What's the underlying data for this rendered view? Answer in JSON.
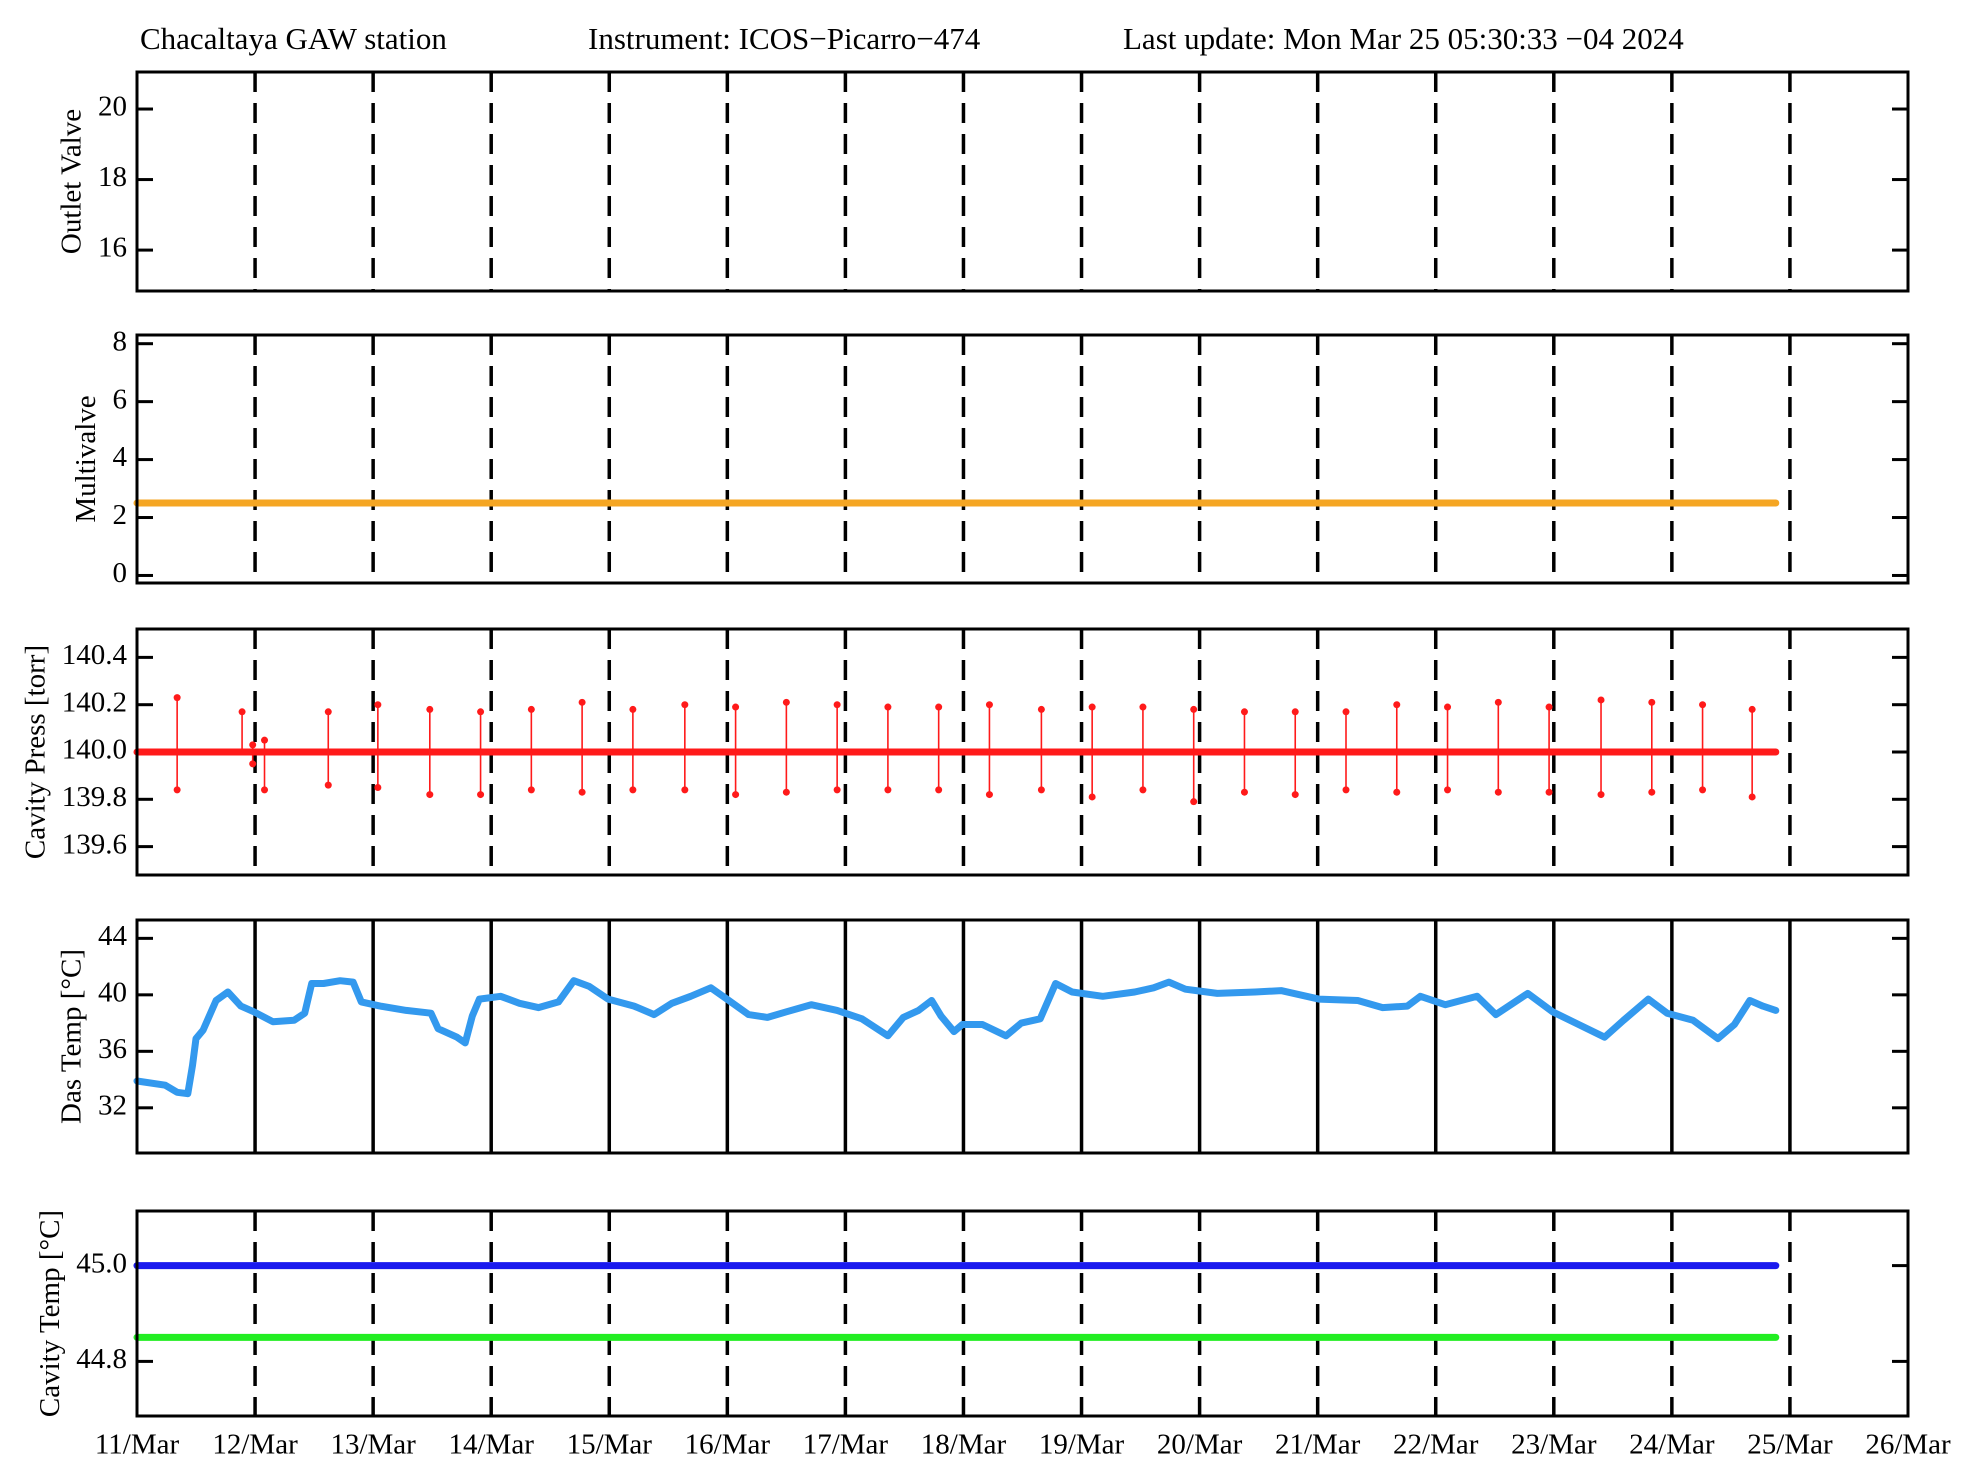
{
  "header": {
    "station": "Chacaltaya GAW station",
    "instrument": "Instrument: ICOS−Picarro−474",
    "update": "Last update: Mon Mar 25 05:30:33 −04 2024"
  },
  "chart_data": [
    {
      "type": "line",
      "ylabel": "Outlet Valve",
      "ylim": [
        14.84,
        21.05
      ],
      "yticks": [
        16,
        18,
        20
      ],
      "xlim": [
        0,
        15
      ],
      "xticks": [
        0,
        1,
        2,
        3,
        4,
        5,
        6,
        7,
        8,
        9,
        10,
        11,
        12,
        13,
        14,
        15
      ],
      "grid": "dashed",
      "series": []
    },
    {
      "type": "line",
      "ylabel": "Multivalve",
      "ylim": [
        -0.26,
        8.3
      ],
      "yticks": [
        0,
        2,
        4,
        6,
        8
      ],
      "xlim": [
        0,
        15
      ],
      "xticks": [
        0,
        1,
        2,
        3,
        4,
        5,
        6,
        7,
        8,
        9,
        10,
        11,
        12,
        13,
        14,
        15
      ],
      "grid": "dashed",
      "series": [
        {
          "color": "#f5a623",
          "x": [
            0,
            13.88
          ],
          "values": [
            2.5,
            2.5
          ]
        }
      ]
    },
    {
      "type": "line",
      "ylabel": "Cavity Press [torr]",
      "ylim": [
        139.48,
        140.52
      ],
      "yticks": [
        139.6,
        139.8,
        {
          "value": 140,
          "label": "140.0"
        },
        140.2,
        140.4
      ],
      "xlim": [
        0,
        15
      ],
      "xticks": [
        0,
        1,
        2,
        3,
        4,
        5,
        6,
        7,
        8,
        9,
        10,
        11,
        12,
        13,
        14,
        15
      ],
      "grid": "dashed",
      "series": [
        {
          "color": "#ff1a1a",
          "x": [
            0,
            13.88
          ],
          "values": [
            140,
            140
          ]
        }
      ],
      "spikes": {
        "color": "#ff1a1a",
        "x": [
          0.34,
          0.89,
          0.98,
          1.08,
          1.62,
          2.04,
          2.48,
          2.91,
          3.34,
          3.77,
          4.2,
          4.64,
          5.07,
          5.5,
          5.93,
          6.36,
          6.79,
          7.22,
          7.66,
          8.09,
          8.52,
          8.95,
          9.38,
          9.81,
          10.24,
          10.67,
          11.1,
          11.53,
          11.96,
          12.4,
          12.83,
          13.26,
          13.68
        ],
        "high": [
          140.23,
          140.17,
          140.03,
          140.05,
          140.17,
          140.2,
          140.18,
          140.17,
          140.18,
          140.21,
          140.18,
          140.2,
          140.19,
          140.21,
          140.2,
          140.19,
          140.19,
          140.2,
          140.18,
          140.19,
          140.19,
          140.18,
          140.17,
          140.17,
          140.17,
          140.2,
          140.19,
          140.21,
          140.19,
          140.22,
          140.21,
          140.2,
          140.18
        ],
        "low": [
          139.84,
          140,
          139.95,
          139.84,
          139.86,
          139.85,
          139.82,
          139.82,
          139.84,
          139.83,
          139.84,
          139.84,
          139.82,
          139.83,
          139.84,
          139.84,
          139.84,
          139.82,
          139.84,
          139.81,
          139.84,
          139.79,
          139.83,
          139.82,
          139.84,
          139.83,
          139.84,
          139.83,
          139.83,
          139.82,
          139.83,
          139.84,
          139.81
        ]
      }
    },
    {
      "type": "line",
      "ylabel": "Das Temp [°C]",
      "ylim": [
        28.8,
        45.3
      ],
      "yticks": [
        32,
        36,
        40,
        44
      ],
      "xlim": [
        0,
        15
      ],
      "xticks": [
        0,
        1,
        2,
        3,
        4,
        5,
        6,
        7,
        8,
        9,
        10,
        11,
        12,
        13,
        14,
        15
      ],
      "grid": "solid",
      "series": [
        {
          "color": "#3399ee",
          "x": [
            0,
            0.24,
            0.34,
            0.43,
            0.47,
            0.5,
            0.56,
            0.67,
            0.77,
            0.88,
            0.99,
            1.15,
            1.33,
            1.42,
            1.48,
            1.58,
            1.72,
            1.83,
            1.9,
            2.06,
            2.28,
            2.49,
            2.55,
            2.71,
            2.78,
            2.84,
            2.9,
            3.08,
            3.24,
            3.4,
            3.57,
            3.7,
            3.83,
            3.99,
            4.21,
            4.38,
            4.53,
            4.69,
            4.86,
            4.98,
            5.18,
            5.34,
            5.5,
            5.71,
            5.93,
            6.14,
            6.36,
            6.49,
            6.62,
            6.73,
            6.81,
            6.92,
            6.99,
            7.16,
            7.36,
            7.49,
            7.65,
            7.78,
            7.92,
            8.18,
            8.45,
            8.61,
            8.74,
            8.88,
            9.15,
            9.47,
            9.69,
            10.01,
            10.34,
            10.55,
            10.76,
            10.87,
            11.08,
            11.35,
            11.51,
            11.78,
            11.99,
            12.21,
            12.43,
            12.59,
            12.8,
            12.96,
            13.18,
            13.39,
            13.53,
            13.66,
            13.77,
            13.88
          ],
          "values": [
            33.9,
            33.6,
            33.1,
            33,
            35,
            36.9,
            37.5,
            39.6,
            40.2,
            39.2,
            38.8,
            38.1,
            38.2,
            38.7,
            40.8,
            40.8,
            41,
            40.9,
            39.5,
            39.2,
            38.9,
            38.7,
            37.6,
            37,
            36.6,
            38.5,
            39.7,
            39.9,
            39.4,
            39.1,
            39.5,
            41,
            40.6,
            39.7,
            39.2,
            38.6,
            39.4,
            39.9,
            40.5,
            39.8,
            38.6,
            38.4,
            38.8,
            39.3,
            38.9,
            38.3,
            37.1,
            38.4,
            38.9,
            39.6,
            38.5,
            37.4,
            37.9,
            37.9,
            37.1,
            38,
            38.3,
            40.8,
            40.2,
            39.9,
            40.2,
            40.5,
            40.9,
            40.4,
            40.1,
            40.2,
            40.3,
            39.7,
            39.6,
            39.1,
            39.2,
            39.9,
            39.3,
            39.9,
            38.6,
            40.1,
            38.8,
            37.9,
            37,
            38.2,
            39.7,
            38.7,
            38.2,
            36.9,
            37.9,
            39.6,
            39.2,
            38.9
          ]
        }
      ]
    },
    {
      "type": "line",
      "ylabel": "Cavity Temp [°C]",
      "ylim": [
        44.686,
        45.114
      ],
      "yticks": [
        44.8,
        {
          "value": 45,
          "label": "45.0"
        }
      ],
      "xlim": [
        0,
        15
      ],
      "xticks": [
        {
          "value": 0,
          "label": "11/Mar"
        },
        {
          "value": 1,
          "label": "12/Mar"
        },
        {
          "value": 2,
          "label": "13/Mar"
        },
        {
          "value": 3,
          "label": "14/Mar"
        },
        {
          "value": 4,
          "label": "15/Mar"
        },
        {
          "value": 5,
          "label": "16/Mar"
        },
        {
          "value": 6,
          "label": "17/Mar"
        },
        {
          "value": 7,
          "label": "18/Mar"
        },
        {
          "value": 8,
          "label": "19/Mar"
        },
        {
          "value": 9,
          "label": "20/Mar"
        },
        {
          "value": 10,
          "label": "21/Mar"
        },
        {
          "value": 11,
          "label": "22/Mar"
        },
        {
          "value": 12,
          "label": "23/Mar"
        },
        {
          "value": 13,
          "label": "24/Mar"
        },
        {
          "value": 14,
          "label": "25/Mar"
        },
        {
          "value": 15,
          "label": "26/Mar"
        }
      ],
      "grid": "dashed",
      "series": [
        {
          "color": "#1a1aee",
          "x": [
            0,
            13.88
          ],
          "values": [
            45,
            45
          ]
        },
        {
          "color": "#22ee22",
          "x": [
            0,
            13.88
          ],
          "values": [
            44.85,
            44.85
          ]
        }
      ]
    }
  ]
}
